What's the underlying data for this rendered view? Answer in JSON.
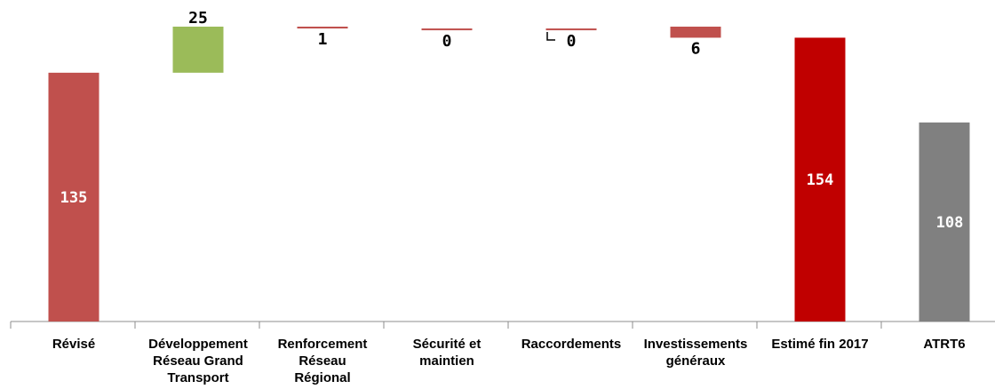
{
  "chart_data": {
    "type": "bar",
    "title": "",
    "xlabel": "",
    "ylabel": "",
    "grid": false,
    "legend": "none",
    "ylim": [
      0,
      160
    ],
    "categories": [
      "Révisé",
      "Développement Réseau Grand Transport",
      "Renforcement Réseau Régional",
      "Sécurité et maintien",
      "Raccordements",
      "Investissements généraux",
      "Estimé fin 2017",
      "ATRT6"
    ],
    "category_lines": [
      [
        "Révisé"
      ],
      [
        "Développement",
        "Réseau Grand",
        "Transport"
      ],
      [
        "Renforcement",
        "Réseau",
        "Régional"
      ],
      [
        "Sécurité et",
        "maintien"
      ],
      [
        "Raccordements"
      ],
      [
        "Investissements",
        "généraux"
      ],
      [
        "Estimé fin 2017"
      ],
      [
        "ATRT6"
      ]
    ],
    "bars": [
      {
        "label": "135",
        "start": 0,
        "end": 135,
        "color": "#c0504d",
        "label_position": "inside"
      },
      {
        "label": "25",
        "start": 135,
        "end": 160,
        "color": "#9bbb59",
        "label_position": "above"
      },
      {
        "label": "1",
        "start": 160,
        "end": 159,
        "color": "#c0504d",
        "label_position": "below"
      },
      {
        "label": "0",
        "start": 159,
        "end": 159,
        "color": "#c0504d",
        "label_position": "below"
      },
      {
        "label": "0",
        "start": 159,
        "end": 159,
        "color": "#c0504d",
        "label_position": "below"
      },
      {
        "label": "6",
        "start": 160,
        "end": 154,
        "color": "#c0504d",
        "label_position": "below"
      },
      {
        "label": "154",
        "start": 0,
        "end": 154,
        "color": "#c00000",
        "label_position": "inside"
      },
      {
        "label": "108",
        "start": 0,
        "end": 108,
        "color": "#808080",
        "label_position": "inside"
      }
    ]
  }
}
